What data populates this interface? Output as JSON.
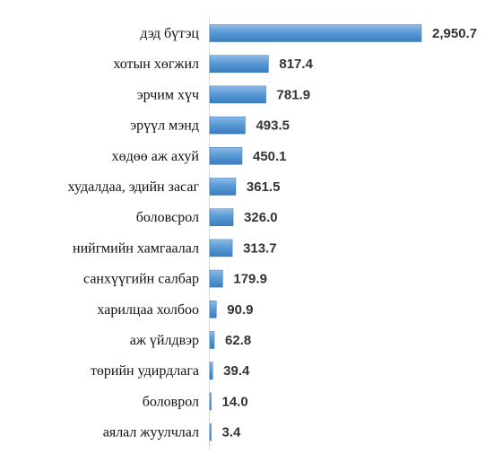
{
  "chart_data": {
    "type": "bar",
    "orientation": "horizontal",
    "categories": [
      "дэд бүтэц",
      "хотын хөгжил",
      "эрчим хүч",
      "эрүүл мэнд",
      "хөдөө аж ахуй",
      "худалдаа, эдийн засаг",
      "боловсрол",
      "нийгмийн хамгаалал",
      "санхүүгийн салбар",
      "харилцаа холбоо",
      "аж үйлдвэр",
      "төрийн удирдлага",
      "боловрол",
      "аялал жуулчлал"
    ],
    "values": [
      2950.7,
      817.4,
      781.9,
      493.5,
      450.1,
      361.5,
      326.0,
      313.7,
      179.9,
      90.9,
      62.8,
      39.4,
      14.0,
      3.4
    ],
    "value_labels": [
      "2,950.7",
      "817.4",
      "781.9",
      "493.5",
      "450.1",
      "361.5",
      "326.0",
      "313.7",
      "179.9",
      "90.9",
      "62.8",
      "39.4",
      "14.0",
      "3.4"
    ],
    "bar_color": "#5b9bd5",
    "bar_color_dark": "#2e75b6",
    "axis_color": "#d9d9d9",
    "grid": false,
    "legend": "none",
    "xlim": [
      0,
      3000
    ]
  }
}
